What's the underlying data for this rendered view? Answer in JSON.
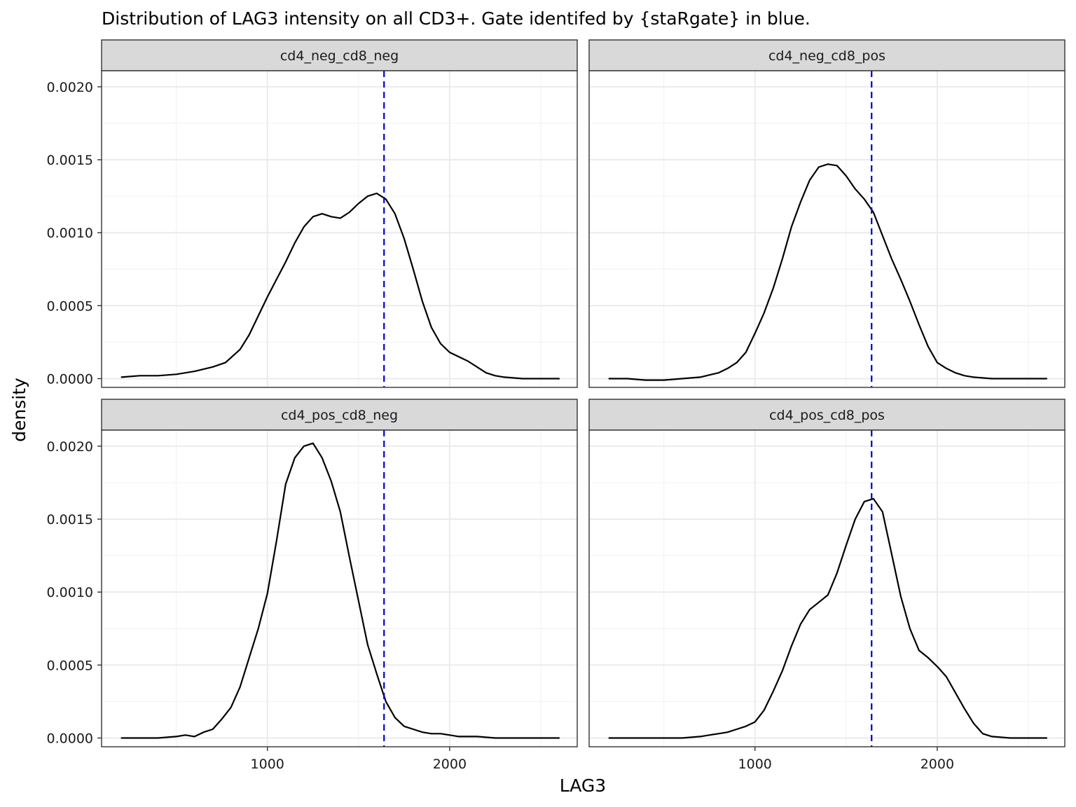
{
  "chart_data": {
    "type": "line",
    "title": "Distribution of LAG3 intensity on all CD3+. Gate identifed by {staRgate} in blue.",
    "xlabel": "LAG3",
    "ylabel": "density",
    "xlim": [
      90,
      2700
    ],
    "ylim": [
      -6e-05,
      0.00211
    ],
    "x_ticks": [
      1000,
      2000
    ],
    "x_tick_labels": [
      "1000",
      "2000"
    ],
    "y_ticks": [
      0,
      0.0005,
      0.001,
      0.0015,
      0.002
    ],
    "y_tick_labels": [
      "0.0000",
      "0.0005",
      "0.0010",
      "0.0015",
      "0.0020"
    ],
    "grid": true,
    "facet_layout": "2x2",
    "colors": {
      "density": "#000000",
      "gate": "#0000cc"
    },
    "gate_x": 1640,
    "panels": [
      {
        "label": "cd4_neg_cd8_neg",
        "points": [
          [
            200,
            1e-05
          ],
          [
            300,
            2e-05
          ],
          [
            400,
            2e-05
          ],
          [
            500,
            3e-05
          ],
          [
            600,
            5e-05
          ],
          [
            700,
            8e-05
          ],
          [
            770,
            0.00011
          ],
          [
            850,
            0.0002
          ],
          [
            900,
            0.0003
          ],
          [
            950,
            0.00043
          ],
          [
            1000,
            0.00056
          ],
          [
            1050,
            0.00068
          ],
          [
            1100,
            0.0008
          ],
          [
            1150,
            0.00093
          ],
          [
            1200,
            0.00104
          ],
          [
            1250,
            0.00111
          ],
          [
            1300,
            0.00113
          ],
          [
            1350,
            0.00111
          ],
          [
            1400,
            0.0011
          ],
          [
            1450,
            0.00114
          ],
          [
            1500,
            0.0012
          ],
          [
            1550,
            0.00125
          ],
          [
            1600,
            0.00127
          ],
          [
            1650,
            0.00123
          ],
          [
            1700,
            0.00113
          ],
          [
            1750,
            0.00096
          ],
          [
            1800,
            0.00075
          ],
          [
            1850,
            0.00053
          ],
          [
            1900,
            0.00035
          ],
          [
            1950,
            0.00024
          ],
          [
            2000,
            0.00018
          ],
          [
            2050,
            0.00015
          ],
          [
            2100,
            0.00012
          ],
          [
            2150,
            8e-05
          ],
          [
            2200,
            4e-05
          ],
          [
            2250,
            2e-05
          ],
          [
            2300,
            1e-05
          ],
          [
            2400,
            0.0
          ],
          [
            2600,
            0.0
          ]
        ]
      },
      {
        "label": "cd4_neg_cd8_pos",
        "points": [
          [
            200,
            0.0
          ],
          [
            300,
            0.0
          ],
          [
            400,
            -1e-05
          ],
          [
            500,
            -1e-05
          ],
          [
            600,
            0.0
          ],
          [
            700,
            1e-05
          ],
          [
            800,
            4e-05
          ],
          [
            850,
            7e-05
          ],
          [
            900,
            0.00011
          ],
          [
            950,
            0.00018
          ],
          [
            1000,
            0.00031
          ],
          [
            1050,
            0.00045
          ],
          [
            1100,
            0.00062
          ],
          [
            1150,
            0.00082
          ],
          [
            1200,
            0.00104
          ],
          [
            1250,
            0.00121
          ],
          [
            1300,
            0.00136
          ],
          [
            1350,
            0.00145
          ],
          [
            1400,
            0.00147
          ],
          [
            1450,
            0.00146
          ],
          [
            1500,
            0.00139
          ],
          [
            1550,
            0.0013
          ],
          [
            1600,
            0.00123
          ],
          [
            1650,
            0.00114
          ],
          [
            1700,
            0.00098
          ],
          [
            1750,
            0.00082
          ],
          [
            1800,
            0.00068
          ],
          [
            1850,
            0.00053
          ],
          [
            1900,
            0.00037
          ],
          [
            1950,
            0.00022
          ],
          [
            2000,
            0.00011
          ],
          [
            2050,
            7e-05
          ],
          [
            2100,
            4e-05
          ],
          [
            2150,
            2e-05
          ],
          [
            2200,
            1e-05
          ],
          [
            2300,
            0.0
          ],
          [
            2400,
            0.0
          ],
          [
            2600,
            0.0
          ]
        ]
      },
      {
        "label": "cd4_pos_cd8_neg",
        "points": [
          [
            200,
            0.0
          ],
          [
            300,
            0.0
          ],
          [
            400,
            0.0
          ],
          [
            500,
            1e-05
          ],
          [
            550,
            2e-05
          ],
          [
            600,
            1e-05
          ],
          [
            650,
            4e-05
          ],
          [
            700,
            6e-05
          ],
          [
            750,
            0.00013
          ],
          [
            800,
            0.00021
          ],
          [
            850,
            0.00035
          ],
          [
            900,
            0.00055
          ],
          [
            950,
            0.00075
          ],
          [
            1000,
            0.00099
          ],
          [
            1050,
            0.00135
          ],
          [
            1100,
            0.00174
          ],
          [
            1150,
            0.00192
          ],
          [
            1200,
            0.002
          ],
          [
            1250,
            0.00202
          ],
          [
            1300,
            0.00192
          ],
          [
            1350,
            0.00176
          ],
          [
            1400,
            0.00155
          ],
          [
            1450,
            0.00124
          ],
          [
            1500,
            0.00094
          ],
          [
            1550,
            0.00064
          ],
          [
            1600,
            0.00044
          ],
          [
            1650,
            0.00025
          ],
          [
            1700,
            0.00014
          ],
          [
            1750,
            8e-05
          ],
          [
            1800,
            6e-05
          ],
          [
            1850,
            4e-05
          ],
          [
            1900,
            3e-05
          ],
          [
            1950,
            3e-05
          ],
          [
            2000,
            2e-05
          ],
          [
            2050,
            1e-05
          ],
          [
            2150,
            1e-05
          ],
          [
            2250,
            0.0
          ],
          [
            2400,
            0.0
          ],
          [
            2600,
            0.0
          ]
        ]
      },
      {
        "label": "cd4_pos_cd8_pos",
        "points": [
          [
            200,
            0.0
          ],
          [
            300,
            0.0
          ],
          [
            400,
            0.0
          ],
          [
            500,
            0.0
          ],
          [
            600,
            0.0
          ],
          [
            700,
            1e-05
          ],
          [
            750,
            2e-05
          ],
          [
            800,
            3e-05
          ],
          [
            850,
            4e-05
          ],
          [
            900,
            6e-05
          ],
          [
            950,
            8e-05
          ],
          [
            1000,
            0.00011
          ],
          [
            1050,
            0.00019
          ],
          [
            1100,
            0.00032
          ],
          [
            1150,
            0.00046
          ],
          [
            1200,
            0.00063
          ],
          [
            1250,
            0.00078
          ],
          [
            1300,
            0.00088
          ],
          [
            1350,
            0.00093
          ],
          [
            1400,
            0.00098
          ],
          [
            1450,
            0.00113
          ],
          [
            1500,
            0.00132
          ],
          [
            1550,
            0.0015
          ],
          [
            1600,
            0.00162
          ],
          [
            1650,
            0.00164
          ],
          [
            1700,
            0.00155
          ],
          [
            1750,
            0.00126
          ],
          [
            1800,
            0.00097
          ],
          [
            1850,
            0.00075
          ],
          [
            1900,
            0.0006
          ],
          [
            1950,
            0.00055
          ],
          [
            2000,
            0.00049
          ],
          [
            2050,
            0.00042
          ],
          [
            2100,
            0.00031
          ],
          [
            2150,
            0.0002
          ],
          [
            2200,
            0.0001
          ],
          [
            2250,
            3e-05
          ],
          [
            2300,
            1e-05
          ],
          [
            2400,
            0.0
          ],
          [
            2600,
            0.0
          ]
        ]
      }
    ]
  }
}
